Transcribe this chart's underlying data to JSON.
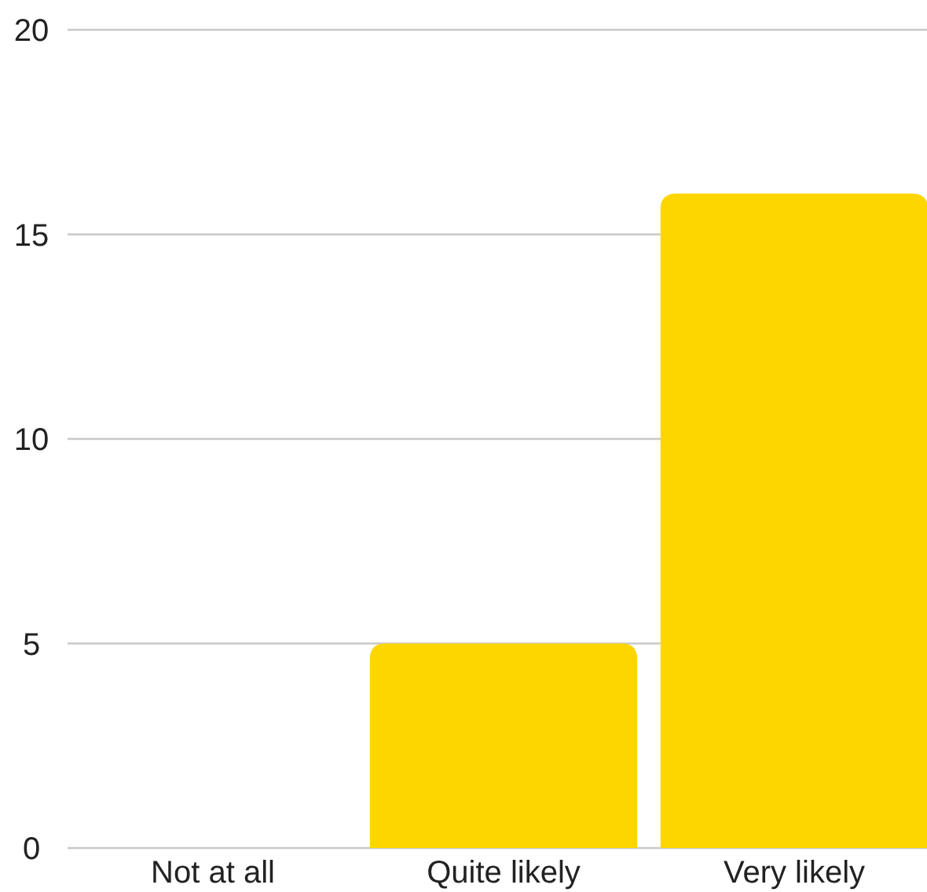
{
  "chart_data": {
    "type": "bar",
    "categories": [
      "Not at all",
      "Quite likely",
      "Very likely"
    ],
    "values": [
      0,
      5,
      16
    ],
    "color": "#fdd600",
    "ylim": [
      0,
      20
    ],
    "yticks": [
      0,
      5,
      10,
      15,
      20
    ],
    "grid": "y"
  }
}
